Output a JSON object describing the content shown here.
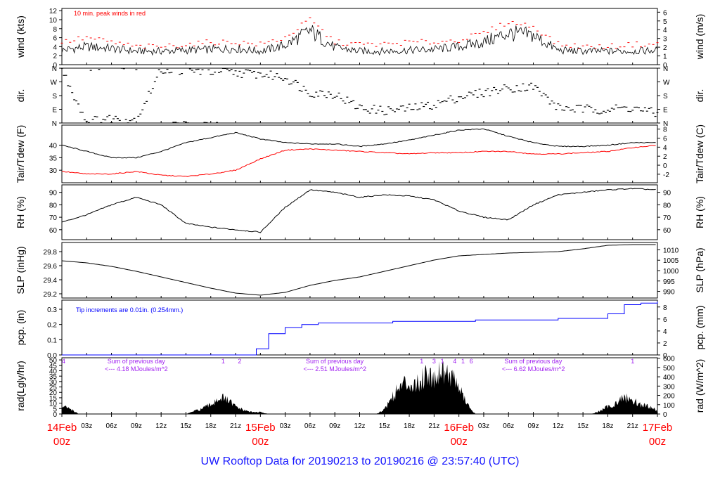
{
  "title": "UW Rooftop Data for 20190213  to  20190216 @ 23:57:40  (UTC)",
  "colors": {
    "axis": "#000000",
    "red": "#ff0000",
    "blue": "#0000ff",
    "purple": "#a020f0",
    "date": "#ff0000",
    "title": "#1515ff"
  },
  "chart_data": [
    {
      "id": "wind",
      "type": "line",
      "ylabel": "wind (kts)",
      "ylabel_right": "wind (m/s)",
      "annotation": "10 min. peak winds in red",
      "ylim": [
        0,
        12.5
      ],
      "left_ticks": [
        0,
        2,
        4,
        6,
        8,
        10,
        12
      ],
      "right_ticks": [
        0,
        1,
        2,
        3,
        4,
        5,
        6
      ],
      "right_factor": 1.944,
      "x": [
        0,
        3,
        6,
        9,
        12,
        15,
        18,
        21,
        24,
        27,
        30,
        33,
        36,
        39,
        42,
        45,
        48,
        51,
        54,
        57,
        60,
        63,
        66,
        69,
        72
      ],
      "series": [
        {
          "name": "wind",
          "color": "#000000",
          "values": [
            3.2,
            4.0,
            3.6,
            3.0,
            3.0,
            3.2,
            3.4,
            3.6,
            3.0,
            4.3,
            7.5,
            3.8,
            3.0,
            3.0,
            3.2,
            3.4,
            4.0,
            5.0,
            7.0,
            6.5,
            3.2,
            3.0,
            3.0,
            3.0,
            3.2
          ]
        },
        {
          "name": "peak",
          "color": "#ff0000",
          "values": [
            5,
            6,
            5,
            4,
            4,
            4.5,
            5,
            5,
            4.5,
            6,
            10,
            5,
            4.5,
            4.5,
            5,
            5,
            5.5,
            7,
            9.5,
            8.5,
            4.5,
            4,
            4,
            4.5,
            4.5
          ]
        }
      ]
    },
    {
      "id": "dir",
      "type": "scatter",
      "ylabel": "dir.",
      "ylabel_right": "dir.",
      "ylim": [
        0,
        360
      ],
      "left_ticks": [
        "N",
        "E",
        "S",
        "W",
        "N"
      ],
      "right_ticks": [
        "N",
        "E",
        "S",
        "W",
        "N"
      ],
      "x": [
        0,
        3,
        6,
        9,
        12,
        15,
        18,
        21,
        24,
        27,
        30,
        33,
        36,
        39,
        42,
        45,
        48,
        51,
        54,
        57,
        60,
        63,
        66,
        69,
        72
      ],
      "series": [
        {
          "name": "direction",
          "color": "#000000",
          "values": [
            350,
            10,
            30,
            20,
            350,
            345,
            340,
            330,
            320,
            300,
            200,
            190,
            100,
            80,
            95,
            120,
            170,
            200,
            230,
            240,
            100,
            90,
            90,
            100,
            60
          ]
        }
      ]
    },
    {
      "id": "temp",
      "type": "line",
      "ylabel": "Tair/Tdew (F)",
      "ylabel_right": "Tair/Tdew (C)",
      "ylim": [
        25,
        48
      ],
      "left_ticks": [
        30,
        35,
        40
      ],
      "right_ticks": [
        -2,
        0,
        2,
        4,
        6,
        8
      ],
      "x": [
        0,
        3,
        6,
        9,
        12,
        15,
        18,
        21,
        24,
        27,
        30,
        33,
        36,
        39,
        42,
        45,
        48,
        51,
        54,
        57,
        60,
        63,
        66,
        69,
        72
      ],
      "series": [
        {
          "name": "Tair",
          "color": "#000000",
          "values": [
            40,
            37.5,
            35,
            35,
            37.5,
            41,
            43,
            45,
            42.5,
            41,
            40.5,
            40.5,
            39.5,
            40.5,
            42,
            44,
            46,
            46.5,
            43.5,
            41,
            39.5,
            39.5,
            40,
            41,
            41
          ]
        },
        {
          "name": "Tdew",
          "color": "#ff0000",
          "values": [
            29.5,
            28.5,
            28.5,
            29.5,
            28,
            27.5,
            28.5,
            30,
            34.5,
            38,
            38.5,
            38,
            37.5,
            37,
            36.5,
            37,
            37,
            37.5,
            37.5,
            36.5,
            36.5,
            37,
            37.5,
            39,
            40
          ]
        }
      ]
    },
    {
      "id": "rh",
      "type": "line",
      "ylabel": "RH (%)",
      "ylabel_right": "RH (%)",
      "ylim": [
        52,
        96
      ],
      "left_ticks": [
        60,
        70,
        80,
        90
      ],
      "right_ticks": [
        60,
        70,
        80,
        90
      ],
      "x": [
        0,
        3,
        6,
        9,
        12,
        15,
        18,
        21,
        24,
        27,
        30,
        33,
        36,
        39,
        42,
        45,
        48,
        51,
        54,
        57,
        60,
        63,
        66,
        69,
        72
      ],
      "series": [
        {
          "name": "RH",
          "color": "#000000",
          "values": [
            66,
            72,
            80,
            86,
            80,
            65,
            62,
            60,
            58,
            78,
            92,
            90,
            86,
            88,
            87,
            84,
            75,
            70,
            68,
            80,
            88,
            90,
            92,
            93,
            92
          ]
        }
      ]
    },
    {
      "id": "slp",
      "type": "line",
      "ylabel": "SLP (inHg)",
      "ylabel_right": "SLP (hPa)",
      "ylim": [
        29.14,
        29.93
      ],
      "left_ticks": [
        29.2,
        29.4,
        29.6,
        29.8
      ],
      "right_ticks": [
        990,
        995,
        1000,
        1005,
        1010
      ],
      "x": [
        0,
        3,
        6,
        9,
        12,
        15,
        18,
        21,
        24,
        27,
        30,
        33,
        36,
        39,
        42,
        45,
        48,
        51,
        54,
        57,
        60,
        63,
        66,
        69,
        72
      ],
      "series": [
        {
          "name": "SLP",
          "color": "#000000",
          "values": [
            29.67,
            29.64,
            29.59,
            29.52,
            29.44,
            29.36,
            29.28,
            29.21,
            29.18,
            29.22,
            29.32,
            29.39,
            29.44,
            29.52,
            29.6,
            29.68,
            29.74,
            29.76,
            29.78,
            29.79,
            29.8,
            29.84,
            29.89,
            29.9,
            29.9
          ]
        }
      ]
    },
    {
      "id": "pcp",
      "type": "line",
      "ylabel": "pcp. (in)",
      "ylabel_right": "pcp. (mm)",
      "annotation": "Tip increments are 0.01in. (0.254mm.)",
      "ylim": [
        0,
        0.36
      ],
      "left_ticks": [
        0.0,
        0.1,
        0.2,
        0.3
      ],
      "right_ticks": [
        0,
        2,
        4,
        6,
        8
      ],
      "x": [
        0,
        3,
        6,
        9,
        12,
        15,
        18,
        21,
        23,
        23.5,
        25,
        27,
        29,
        31,
        36,
        40,
        45,
        50,
        55,
        60,
        65,
        66,
        68,
        70,
        72
      ],
      "series": [
        {
          "name": "pcp",
          "color": "#0000ff",
          "values": [
            0,
            0,
            0,
            0,
            0,
            0,
            0,
            0,
            0,
            0.04,
            0.14,
            0.18,
            0.2,
            0.21,
            0.21,
            0.22,
            0.22,
            0.23,
            0.23,
            0.24,
            0.24,
            0.27,
            0.33,
            0.34,
            0.35
          ]
        }
      ]
    },
    {
      "id": "rad",
      "type": "area",
      "ylabel": "rad(Lgly/hr)",
      "ylabel_right": "rad (W/m^2)",
      "ylim": [
        0,
        52
      ],
      "left_ticks": [
        0,
        5,
        10,
        15,
        20,
        25,
        30,
        35,
        40,
        45,
        50
      ],
      "right_ticks": [
        0,
        100,
        200,
        300,
        400,
        500,
        600
      ],
      "x": [
        0,
        1,
        2,
        15,
        16,
        17,
        18,
        19,
        20,
        21,
        22,
        23,
        24,
        25,
        38,
        39,
        40,
        41,
        42,
        43,
        44,
        45,
        46,
        47,
        48,
        49,
        50,
        64,
        65,
        66,
        67,
        68,
        69,
        70,
        71,
        72
      ],
      "series": [
        {
          "name": "radiation",
          "color": "#000000",
          "values": [
            8,
            6,
            0,
            0,
            3,
            6,
            10,
            18,
            15,
            8,
            4,
            2,
            2,
            0,
            0,
            5,
            20,
            30,
            35,
            32,
            45,
            40,
            50,
            42,
            30,
            10,
            0,
            0,
            3,
            8,
            12,
            18,
            15,
            10,
            8,
            4
          ]
        }
      ],
      "annotations": [
        {
          "text": "Sum of previous day",
          "at": 5
        },
        {
          "text": "<--- 4.18 MJoules/m^2",
          "at": 5
        },
        {
          "text": "Sum of previous day",
          "at": 29
        },
        {
          "text": "<--- 2.51 MJoules/m^2",
          "at": 29
        },
        {
          "text": "Sum of previous day",
          "at": 53
        },
        {
          "text": "<--- 6.62 MJoules/m^2",
          "at": 53
        }
      ],
      "tip_markers": [
        {
          "label": "4",
          "at": 0.2
        },
        {
          "label": "1",
          "at": 19.5
        },
        {
          "label": "2",
          "at": 21.5
        },
        {
          "label": "1",
          "at": 43.5
        },
        {
          "label": "3",
          "at": 45
        },
        {
          "label": "1",
          "at": 46
        },
        {
          "label": "4",
          "at": 47.5
        },
        {
          "label": "1",
          "at": 48.5
        },
        {
          "label": "6",
          "at": 49.5
        },
        {
          "label": "1",
          "at": 69
        }
      ]
    }
  ],
  "x_axis": {
    "hour_ticks": [
      "03z",
      "06z",
      "09z",
      "12z",
      "15z",
      "18z",
      "21z"
    ],
    "days": [
      {
        "date": "14Feb",
        "hour": "00z"
      },
      {
        "date": "15Feb",
        "hour": "00z"
      },
      {
        "date": "16Feb",
        "hour": "00z"
      },
      {
        "date": "17Feb",
        "hour": "00z"
      }
    ]
  }
}
